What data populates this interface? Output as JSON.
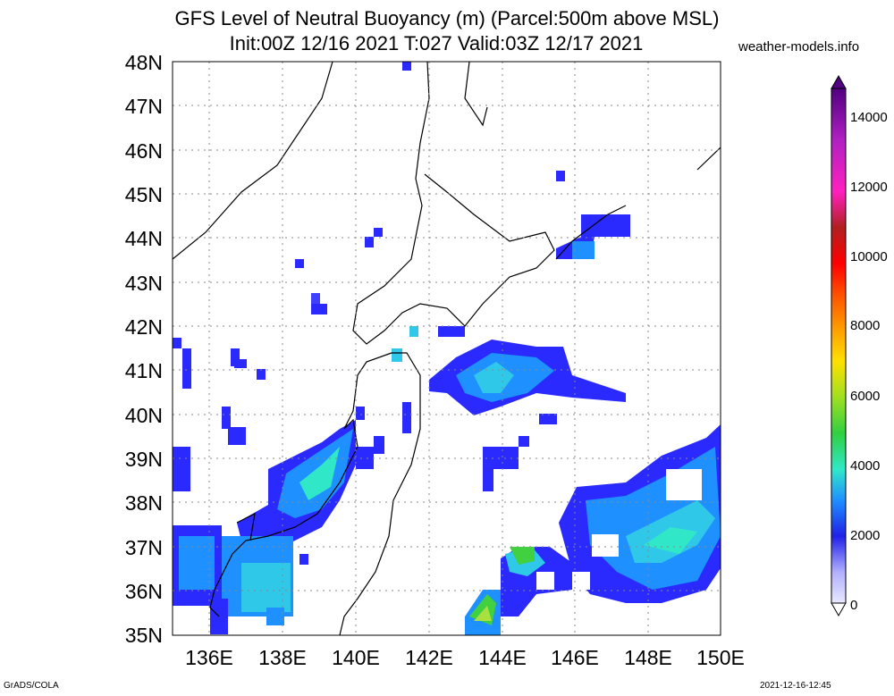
{
  "title_line1": "GFS Level of Neutral Buoyancy (m) (Parcel:500m above MSL)",
  "title_line2": "Init:00Z 12/16 2021 T:027 Valid:03Z 12/17 2021",
  "site": "weather-models.info",
  "footer_left": "GrADS/COLA",
  "footer_right": "2021-12-16-12:45",
  "lat_labels": [
    "48N",
    "47N",
    "46N",
    "45N",
    "44N",
    "43N",
    "42N",
    "41N",
    "40N",
    "39N",
    "38N",
    "37N",
    "36N",
    "35N"
  ],
  "lon_labels": [
    "136E",
    "138E",
    "140E",
    "142E",
    "144E",
    "146E",
    "148E",
    "150E"
  ],
  "colorbar_labels": [
    "14000",
    "12000",
    "10000",
    "8000",
    "6000",
    "4000",
    "2000",
    "0"
  ],
  "colors": {
    "light_blue": "#d0d0ff",
    "blue": "#2a2aff",
    "dark_blue": "#1212d0",
    "cyan": "#20c8e8",
    "aqua": "#30e8c8",
    "green": "#40d040",
    "yellow_green": "#a8e040"
  }
}
